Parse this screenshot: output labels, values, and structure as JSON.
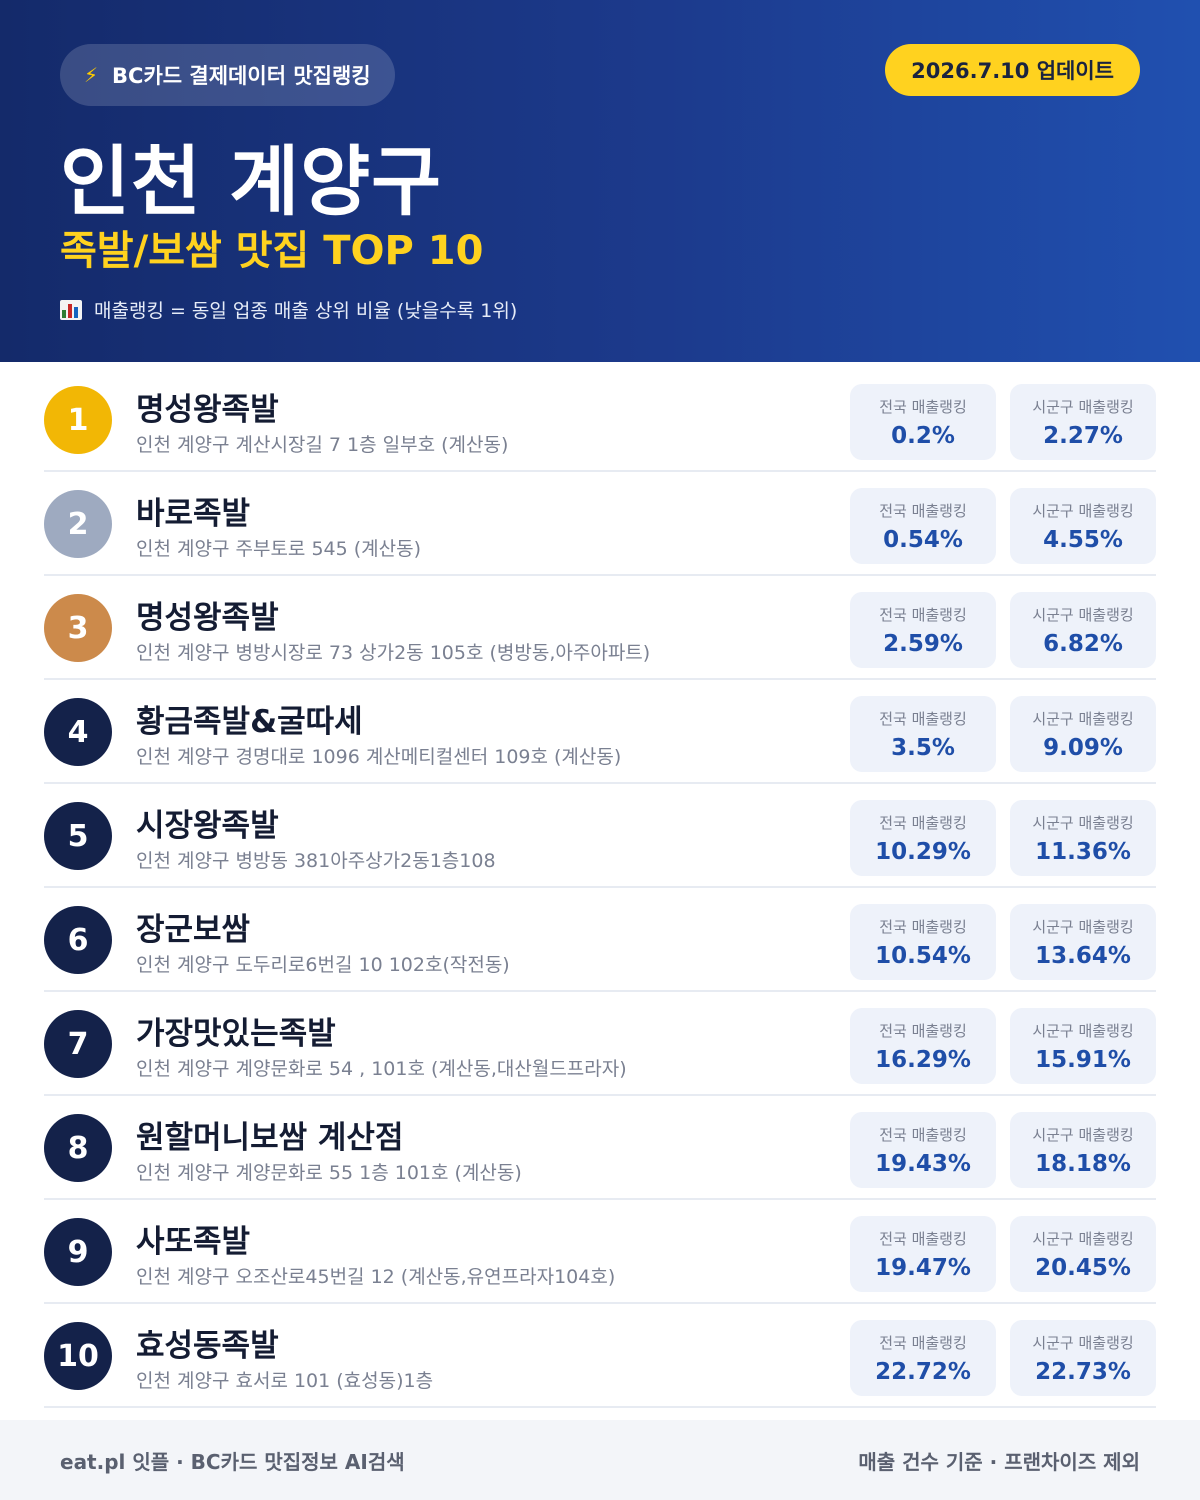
{
  "header": {
    "badge_text": "BC카드 결제데이터 맛집랭킹",
    "badge_icon": "lightning-icon",
    "update_text": "2026.7.10 업데이트",
    "title": "인천 계양구",
    "subtitle": "족발/보쌈 맛집 TOP 10",
    "note": "매출랭킹 = 동일 업종 매출 상위 비율 (낮을수록 1위)",
    "note_icon": "bar-chart-icon"
  },
  "labels": {
    "national": "전국 매출랭킹",
    "local": "시군구 매출랭킹"
  },
  "colors": {
    "gold": "#f2b705",
    "silver": "#9eaac0",
    "bronze": "#cc8a4b",
    "navy": "#14224a",
    "accent": "#ffd21f"
  },
  "items": [
    {
      "rank": "1",
      "name": "명성왕족발",
      "address": "인천 계양구 계산시장길 7 1층 일부호 (계산동)",
      "national": "0.2%",
      "local": "2.27%"
    },
    {
      "rank": "2",
      "name": "바로족발",
      "address": "인천 계양구 주부토로 545 (계산동)",
      "national": "0.54%",
      "local": "4.55%"
    },
    {
      "rank": "3",
      "name": "명성왕족발",
      "address": "인천 계양구 병방시장로 73 상가2동 105호 (병방동,아주아파트)",
      "national": "2.59%",
      "local": "6.82%"
    },
    {
      "rank": "4",
      "name": "황금족발&굴따세",
      "address": "인천 계양구 경명대로 1096 계산메티컬센터 109호 (계산동)",
      "national": "3.5%",
      "local": "9.09%"
    },
    {
      "rank": "5",
      "name": "시장왕족발",
      "address": "인천 계양구 병방동 381아주상가2동1층108",
      "national": "10.29%",
      "local": "11.36%"
    },
    {
      "rank": "6",
      "name": "장군보쌈",
      "address": "인천 계양구 도두리로6번길 10 102호(작전동)",
      "national": "10.54%",
      "local": "13.64%"
    },
    {
      "rank": "7",
      "name": "가장맛있는족발",
      "address": "인천 계양구 계양문화로 54 , 101호 (계산동,대산월드프라자)",
      "national": "16.29%",
      "local": "15.91%"
    },
    {
      "rank": "8",
      "name": "원할머니보쌈 계산점",
      "address": "인천 계양구 계양문화로 55 1층 101호 (계산동)",
      "national": "19.43%",
      "local": "18.18%"
    },
    {
      "rank": "9",
      "name": "사또족발",
      "address": "인천 계양구 오조산로45번길 12 (계산동,유연프라자104호)",
      "national": "19.47%",
      "local": "20.45%"
    },
    {
      "rank": "10",
      "name": "효성동족발",
      "address": "인천 계양구 효서로 101 (효성동)1층",
      "national": "22.72%",
      "local": "22.73%"
    }
  ],
  "footer": {
    "left": "eat.pl 잇플 · BC카드 맛집정보 AI검색",
    "right": "매출 건수 기준 · 프랜차이즈 제외"
  }
}
